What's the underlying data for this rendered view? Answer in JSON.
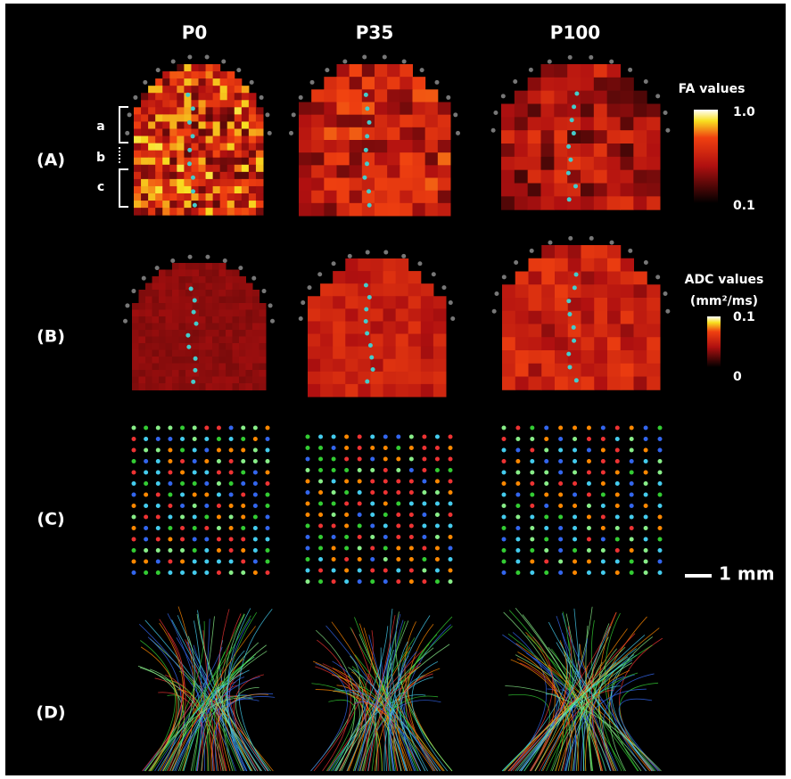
{
  "columns": [
    "P0",
    "P35",
    "P100"
  ],
  "rows": [
    "(A)",
    "(B)",
    "(C)",
    "(D)"
  ],
  "layers": [
    "a",
    "b",
    "c"
  ],
  "fa_legend": {
    "title": "FA values",
    "max": "1.0",
    "min": "0.1"
  },
  "adc_legend": {
    "title": "ADC values",
    "unit": "(mm²/ms)",
    "max": "0.1",
    "min": "0"
  },
  "scale_bar": "1 mm"
}
